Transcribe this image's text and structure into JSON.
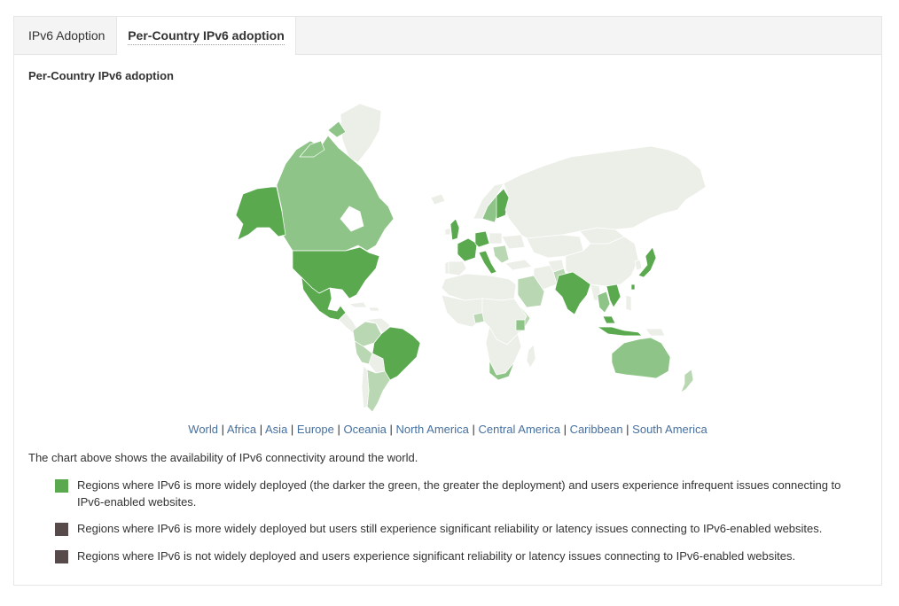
{
  "tabs": [
    {
      "label": "IPv6 Adoption"
    },
    {
      "label": "Per-Country IPv6 adoption"
    }
  ],
  "panel_title": "Per-Country IPv6 adoption",
  "map": {
    "colors": {
      "background": "#ffffff",
      "no_data": "#ebefe8",
      "country_border": "#ffffff",
      "light_green": "#b8d7b2",
      "medium_green": "#8ec487",
      "dark_green": "#5aa94f"
    }
  },
  "region_links": [
    "World",
    "Africa",
    "Asia",
    "Europe",
    "Oceania",
    "North America",
    "Central America",
    "Caribbean",
    "South America"
  ],
  "link_separator": "|",
  "description": "The chart above shows the availability of IPv6 connectivity around the world.",
  "legend": [
    {
      "color": "#5aa94f",
      "text": "Regions where IPv6 is more widely deployed (the darker the green, the greater the deployment) and users experience infrequent issues connecting to IPv6-enabled websites."
    },
    {
      "color": "#574a4a",
      "text": "Regions where IPv6 is more widely deployed but users still experience significant reliability or latency issues connecting to IPv6-enabled websites."
    },
    {
      "color": "#574a4a",
      "text": "Regions where IPv6 is not widely deployed and users experience significant reliability or latency issues connecting to IPv6-enabled websites."
    }
  ]
}
